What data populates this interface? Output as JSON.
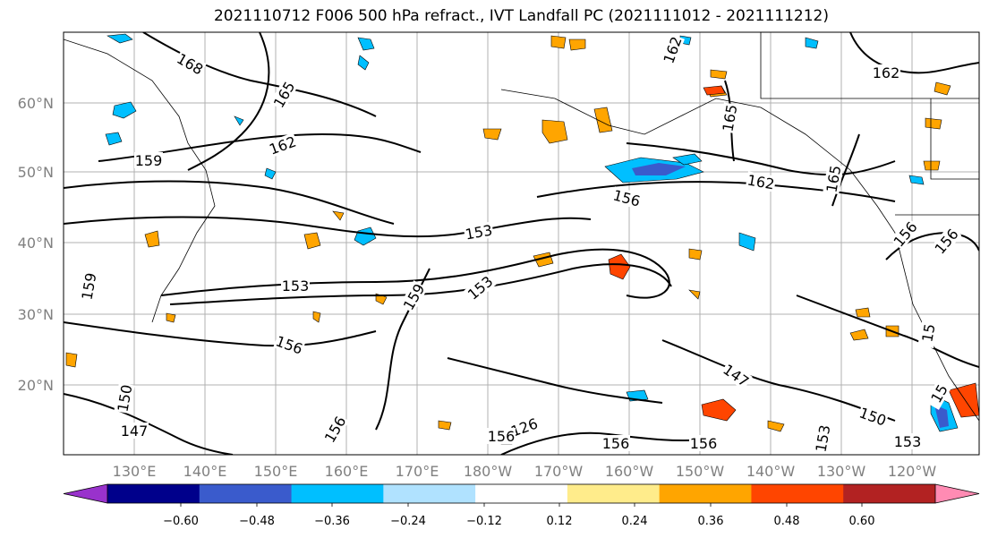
{
  "title": "2021110712 F006 500 hPa refract., IVT Landfall PC (2021111012 - 2021111212)",
  "lat_labels": [
    "60°N",
    "50°N",
    "40°N",
    "30°N",
    "20°N"
  ],
  "lon_labels": [
    "130°E",
    "140°E",
    "150°E",
    "160°E",
    "170°E",
    "180°W",
    "170°W",
    "160°W",
    "150°W",
    "140°W",
    "130°W",
    "120°W"
  ],
  "contour_labels": [
    "168",
    "165",
    "162",
    "159",
    "162",
    "165",
    "162",
    "165",
    "162",
    "156",
    "153",
    "153",
    "153",
    "159",
    "156",
    "156",
    "159",
    "147",
    "150",
    "147",
    "156",
    "153",
    "156",
    "126",
    "156",
    "156",
    "15",
    "156",
    "153",
    "15",
    "150"
  ],
  "colorbar": {
    "colors": [
      "#9932cc",
      "#00008b",
      "#3a5bcc",
      "#00bfff",
      "#b0e2ff",
      "#ffffff",
      "#ffec8b",
      "#ffa500",
      "#ff4500",
      "#b22222",
      "#ff8bb3"
    ],
    "ticks": [
      "−0.60",
      "−0.48",
      "−0.36",
      "−0.24",
      "−0.12",
      "0.12",
      "0.24",
      "0.36",
      "0.48",
      "0.60"
    ]
  }
}
